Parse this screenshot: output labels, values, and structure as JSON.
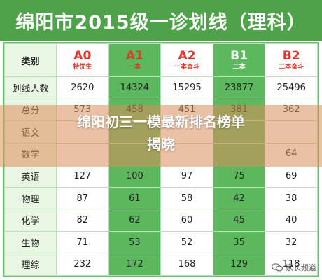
{
  "title": "绵阳市2015级一诊划线（理科）",
  "header": {
    "label": "类别",
    "columns": [
      {
        "main": "A0",
        "sub": "特优生"
      },
      {
        "main": "A1",
        "sub": "一本"
      },
      {
        "main": "A2",
        "sub": "一本奋斗"
      },
      {
        "main": "B1",
        "sub": "二本"
      },
      {
        "main": "B2",
        "sub": "二本奋斗"
      }
    ]
  },
  "rows": [
    {
      "label": "划线人数",
      "values": [
        "2620",
        "14324",
        "15295",
        "23877",
        "25496"
      ]
    },
    {
      "label": "总分",
      "values": [
        "573",
        "458",
        "451",
        "381",
        "362"
      ]
    },
    {
      "label": "语文",
      "values": [
        "",
        "",
        "",
        "",
        ""
      ]
    },
    {
      "label": "数学",
      "values": [
        "",
        "",
        "",
        "",
        "64"
      ]
    },
    {
      "label": "英语",
      "values": [
        "127",
        "100",
        "97",
        "75",
        "69"
      ]
    },
    {
      "label": "物理",
      "values": [
        "87",
        "61",
        "58",
        "42",
        "38"
      ]
    },
    {
      "label": "化学",
      "values": [
        "82",
        "62",
        "60",
        "45",
        "40"
      ]
    },
    {
      "label": "生物",
      "values": [
        "71",
        "53",
        "52",
        "35",
        "32"
      ]
    },
    {
      "label": "理综",
      "values": [
        "232",
        "172",
        "168",
        "129",
        "118"
      ]
    }
  ],
  "overlay": {
    "line1": "绵阳初三一模最新排名榜单",
    "line2": "揭晓"
  },
  "watermark": "家长频道"
}
